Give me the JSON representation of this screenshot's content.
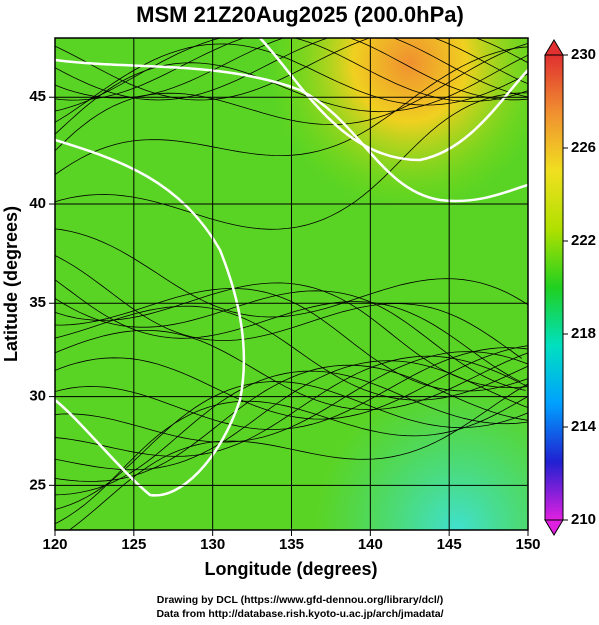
{
  "chart_data": {
    "type": "map",
    "title": "MSM 21Z20Aug2025 (200.0hPa)",
    "xlabel": "Longitude (degrees)",
    "ylabel": "Latitude  (degrees)",
    "xlim": [
      120,
      150
    ],
    "xticks": [
      120,
      125,
      130,
      135,
      140,
      145,
      150
    ],
    "ylim": [
      22.4,
      47.6
    ],
    "yticks": [
      25,
      30,
      35,
      40,
      45
    ],
    "projection": "mercator",
    "grid": true,
    "colorbar": {
      "lim": [
        210,
        230
      ],
      "ticks": [
        210,
        214,
        218,
        222,
        226,
        230
      ],
      "colors": [
        "#e020e0",
        "#2020d0",
        "#00a0ff",
        "#00e0c0",
        "#20d020",
        "#b0e000",
        "#f0e020",
        "#f09030",
        "#e03030"
      ]
    }
  },
  "footer": [
    "Drawing by DCL (https://www.gfd-dennou.org/library/dcl/)",
    "Data from http://database.rish.kyoto-u.ac.jp/arch/jmadata/"
  ]
}
